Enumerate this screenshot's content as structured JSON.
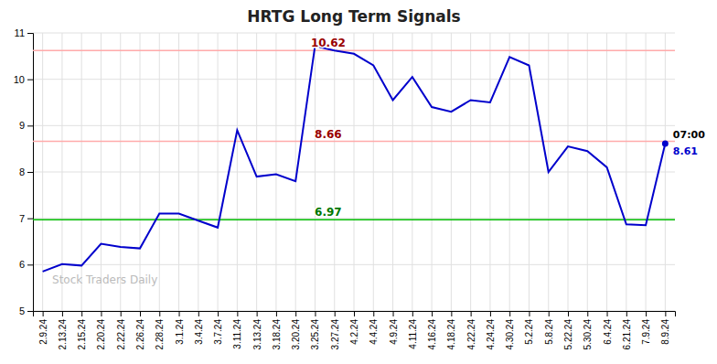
{
  "chart_data": {
    "type": "line",
    "title": "HRTG Long Term Signals",
    "categories": [
      "2.9.24",
      "2.13.24",
      "2.15.24",
      "2.20.24",
      "2.22.24",
      "2.26.24",
      "2.28.24",
      "3.1.24",
      "3.4.24",
      "3.7.24",
      "3.11.24",
      "3.13.24",
      "3.18.24",
      "3.20.24",
      "3.25.24",
      "3.27.24",
      "4.2.24",
      "4.4.24",
      "4.9.24",
      "4.11.24",
      "4.16.24",
      "4.18.24",
      "4.22.24",
      "4.24.24",
      "4.30.24",
      "5.2.24",
      "5.8.24",
      "5.22.24",
      "5.30.24",
      "6.4.24",
      "6.21.24",
      "7.9.24",
      "8.9.24"
    ],
    "values": [
      5.85,
      6.01,
      5.98,
      6.45,
      6.38,
      6.35,
      7.1,
      7.1,
      6.95,
      6.8,
      8.9,
      7.9,
      7.95,
      7.8,
      10.72,
      10.62,
      10.55,
      10.3,
      9.55,
      10.05,
      9.4,
      9.3,
      9.55,
      9.5,
      10.48,
      10.3,
      8.0,
      8.55,
      8.45,
      8.1,
      6.87,
      6.85,
      8.61
    ],
    "color": "#0000cc",
    "ylim": [
      5,
      11
    ],
    "yticks": [
      5,
      6,
      7,
      8,
      9,
      10,
      11
    ],
    "grid": true,
    "reference_lines": [
      {
        "value": 10.62,
        "label": "10.62",
        "color": "#ffaaaa",
        "label_color": "#990000"
      },
      {
        "value": 8.66,
        "label": "8.66",
        "color": "#ffaaaa",
        "label_color": "#990000"
      },
      {
        "value": 6.97,
        "label": "6.97",
        "color": "#00bb00",
        "label_color": "#007700"
      }
    ],
    "annotations": [
      {
        "text": "07:00",
        "x": "8.9.24",
        "y": 8.61,
        "color": "#000000",
        "position": "above"
      },
      {
        "text": "8.61",
        "x": "8.9.24",
        "y": 8.61,
        "color": "#0000cc",
        "position": "below",
        "marker": "circle"
      }
    ],
    "watermark": {
      "text": "Stock Traders Daily",
      "color": "#bbbbbb"
    }
  }
}
